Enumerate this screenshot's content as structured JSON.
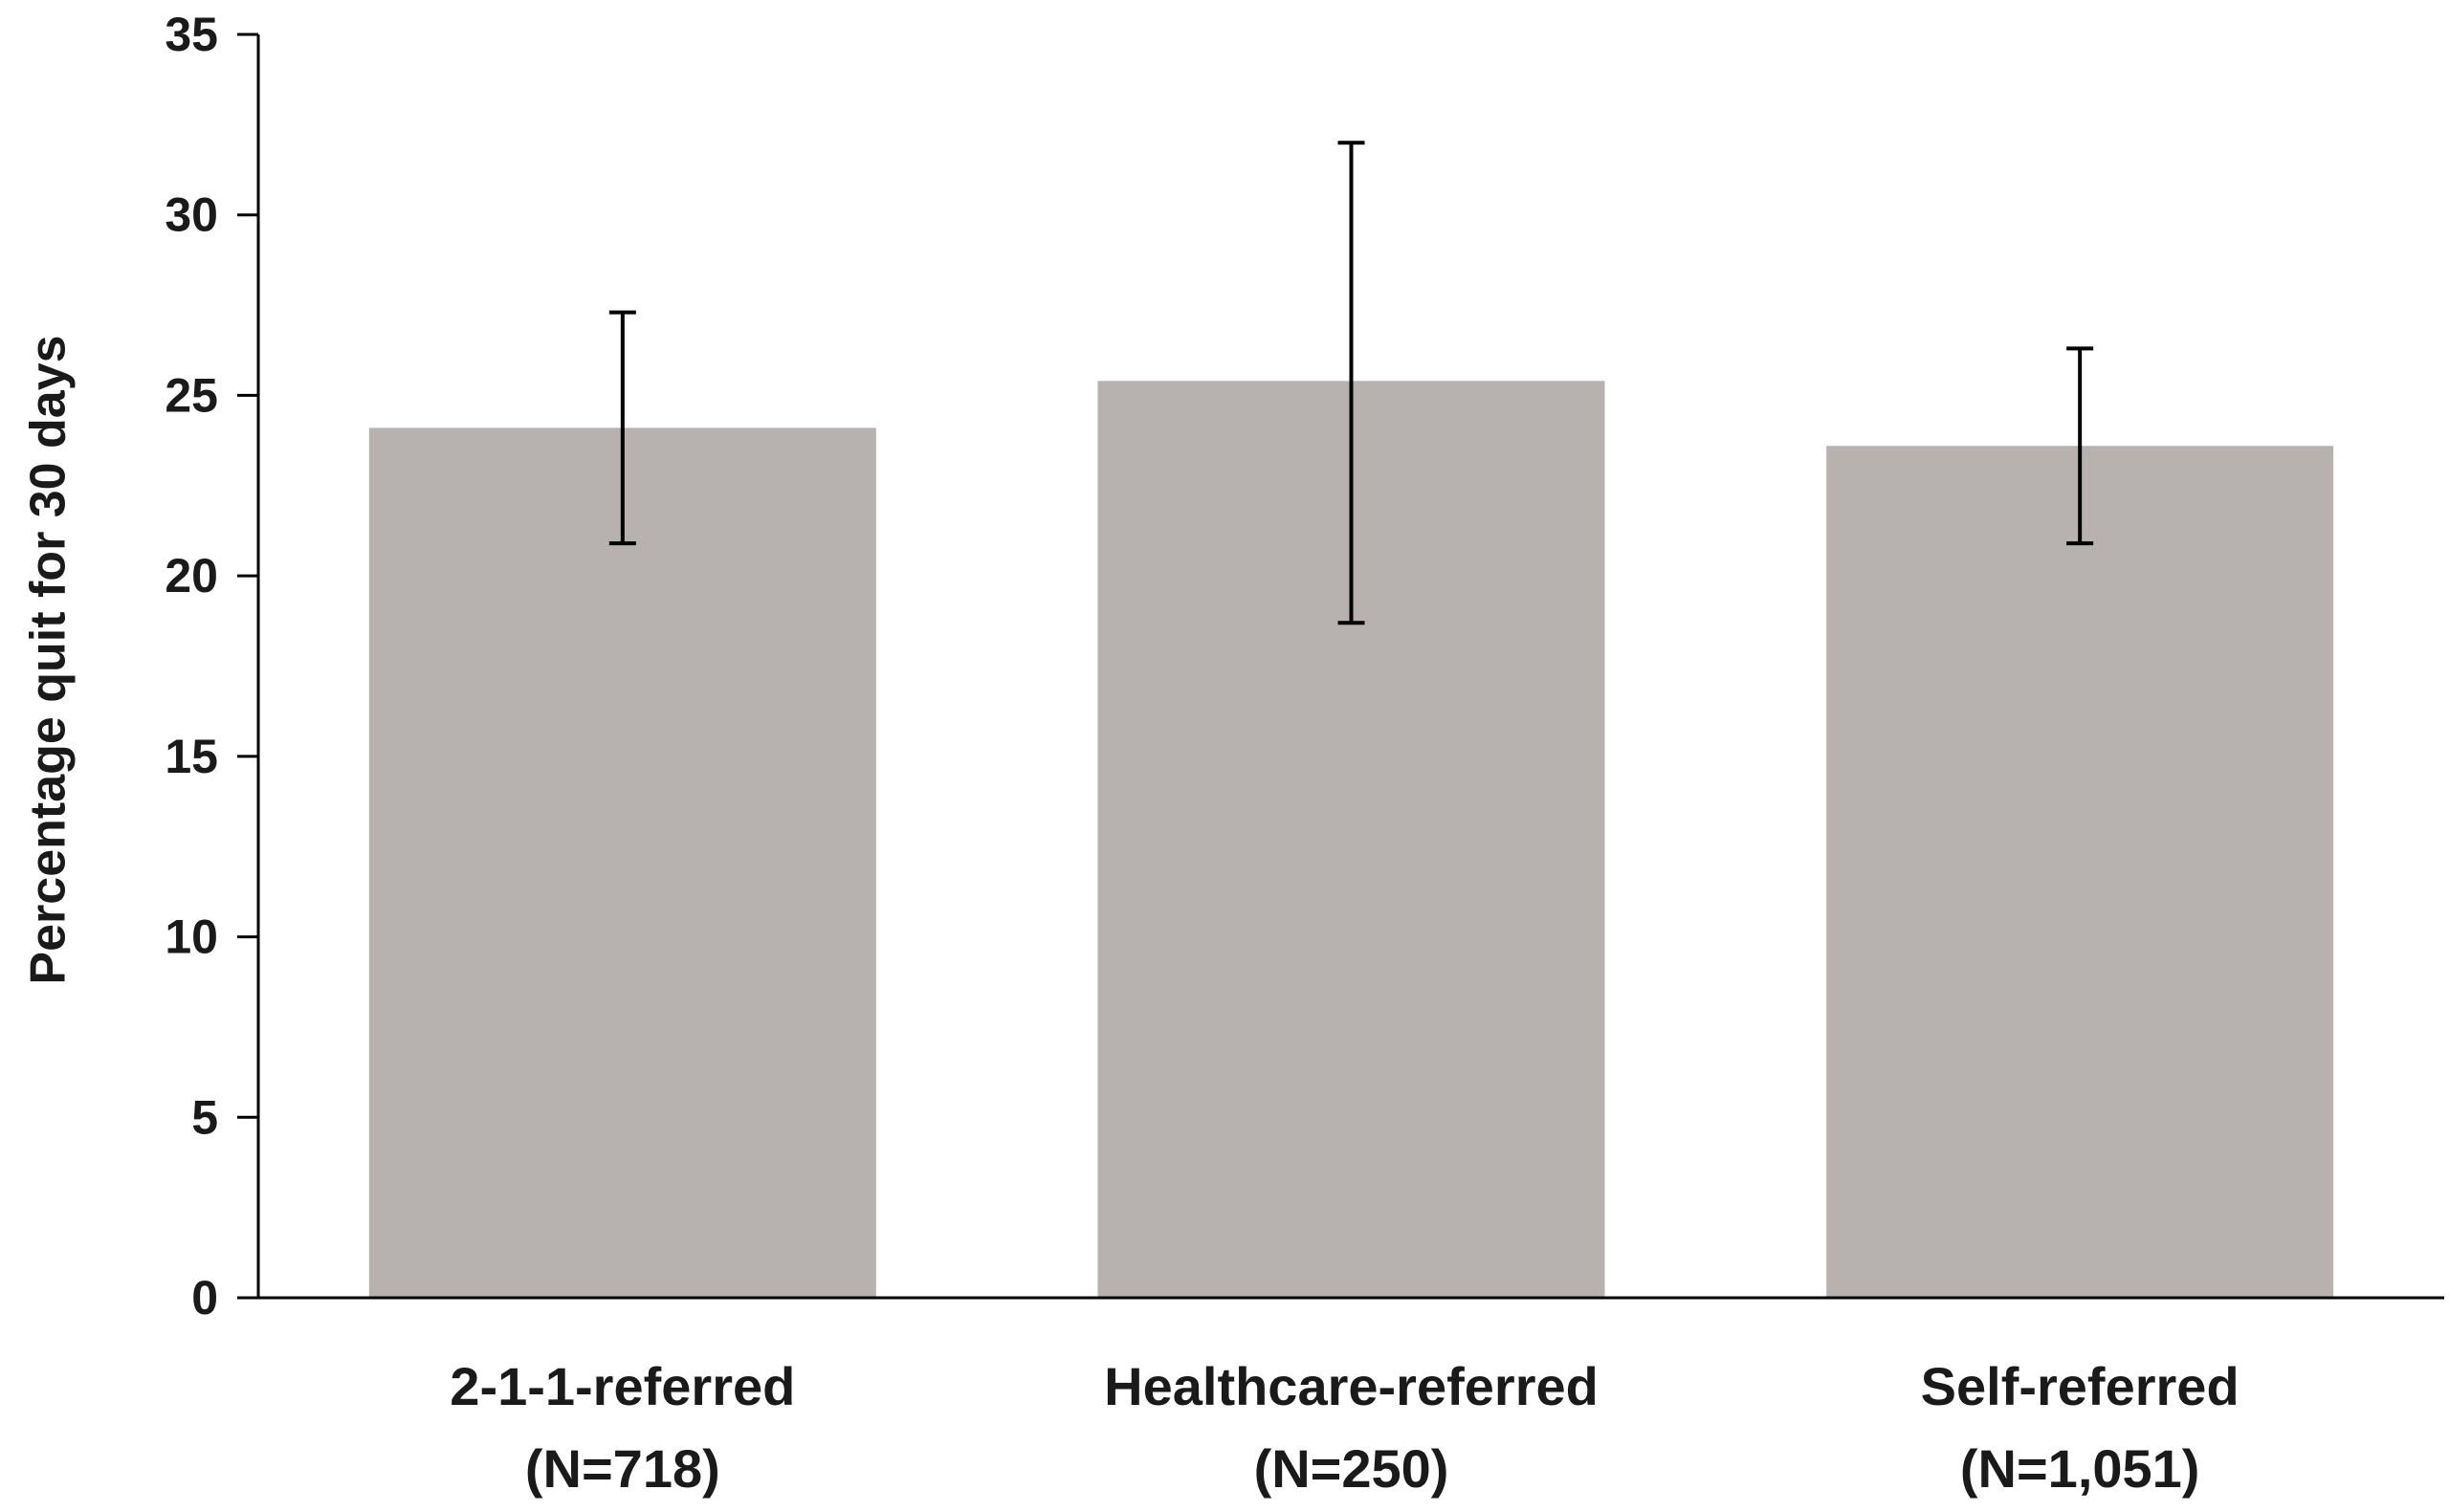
{
  "chart_data": {
    "type": "bar",
    "title": "",
    "xlabel": "",
    "ylabel": "Percentage quit for 30 days",
    "ylim": [
      0,
      35
    ],
    "yticks": [
      0,
      5,
      10,
      15,
      20,
      25,
      30,
      35
    ],
    "grid": false,
    "categories": [
      {
        "line1": "2-1-1-referred",
        "line2": "(N=718)"
      },
      {
        "line1": "Healthcare-referred",
        "line2": "(N=250)"
      },
      {
        "line1": "Self-referred",
        "line2": "(N=1,051)"
      }
    ],
    "values": [
      24.1,
      25.4,
      23.6
    ],
    "error_bars": [
      {
        "low": 20.9,
        "high": 27.3
      },
      {
        "low": 18.7,
        "high": 32.0
      },
      {
        "low": 20.9,
        "high": 26.3
      }
    ],
    "colors": {
      "bar": "#b7b1b0",
      "axis": "#000000",
      "error": "#000000"
    }
  }
}
